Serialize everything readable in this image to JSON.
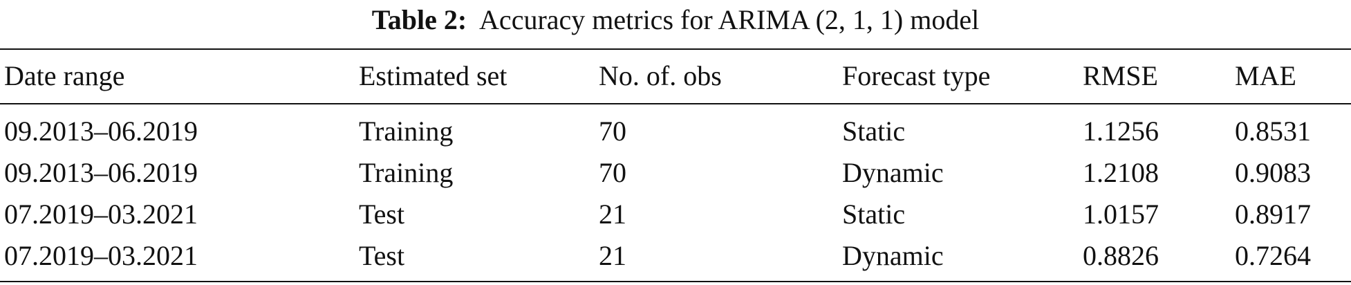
{
  "caption": {
    "label": "Table 2:",
    "text": "Accuracy metrics for ARIMA (2, 1, 1) model"
  },
  "table": {
    "header": [
      "Date range",
      "Estimated set",
      "No. of. obs",
      "Forecast type",
      "RMSE",
      "MAE"
    ],
    "rows": [
      [
        "09.2013–06.2019",
        "Training",
        "70",
        "Static",
        "1.1256",
        "0.8531"
      ],
      [
        "09.2013–06.2019",
        "Training",
        "70",
        "Dynamic",
        "1.2108",
        "0.9083"
      ],
      [
        "07.2019–03.2021",
        "Test",
        "21",
        "Static",
        "1.0157",
        "0.8917"
      ],
      [
        "07.2019–03.2021",
        "Test",
        "21",
        "Dynamic",
        "0.8826",
        "0.7264"
      ]
    ]
  }
}
